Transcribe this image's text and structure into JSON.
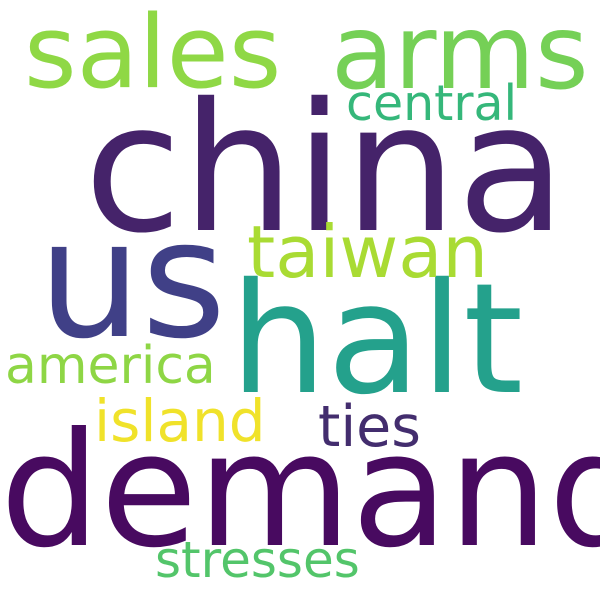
{
  "words": [
    {
      "text": "china",
      "color": "#45236a"
    },
    {
      "text": "sales",
      "color": "#8fd845"
    },
    {
      "text": "arms",
      "color": "#75d056"
    },
    {
      "text": "demands",
      "color": "#480a60"
    },
    {
      "text": "halt",
      "color": "#24a18c"
    },
    {
      "text": "us",
      "color": "#404087"
    },
    {
      "text": "taiwan",
      "color": "#a9db33"
    },
    {
      "text": "central",
      "color": "#35b77a"
    },
    {
      "text": "america",
      "color": "#8ed645"
    },
    {
      "text": "island",
      "color": "#f0e22a"
    },
    {
      "text": "ties",
      "color": "#432d6e"
    },
    {
      "text": "stresses",
      "color": "#53c56a"
    }
  ]
}
